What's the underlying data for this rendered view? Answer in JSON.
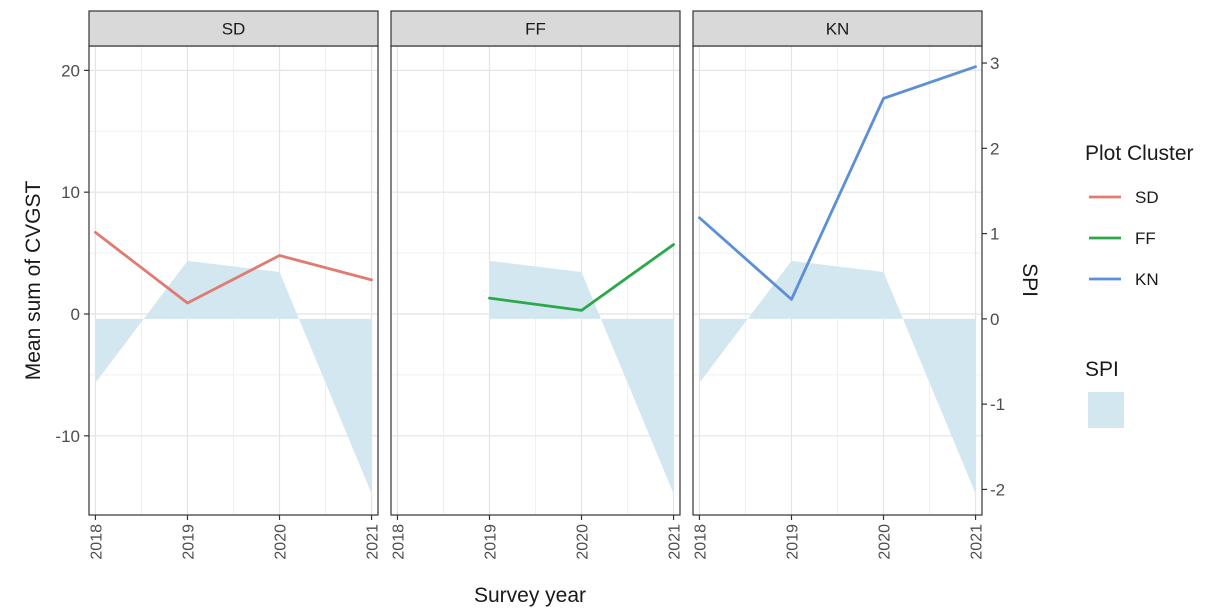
{
  "chart_data": {
    "type": "line",
    "facets": [
      "SD",
      "FF",
      "KN"
    ],
    "xlabel": "Survey year",
    "ylabel": "Mean sum of CVGST",
    "y2label": "SPI",
    "x_ticks": [
      2018,
      2019,
      2020,
      2021
    ],
    "y_ticks": [
      -10,
      0,
      10,
      20
    ],
    "y2_ticks": [
      -2,
      -1,
      0,
      1,
      2,
      3
    ],
    "xlim": [
      2017.93,
      2021.07
    ],
    "ylim": [
      -16.5,
      22.0
    ],
    "y2lim": [
      -2.3,
      3.2
    ],
    "grid": true,
    "legend_position": "right",
    "legend": {
      "line_title": "Plot Cluster",
      "fill_title": "SPI",
      "fill_color": "#d3e7f1"
    },
    "series": [
      {
        "name": "SD",
        "color": "#e07b72",
        "x": [
          2018,
          2019,
          2020,
          2021
        ],
        "values": [
          6.7,
          0.9,
          4.8,
          2.8
        ]
      },
      {
        "name": "FF",
        "color": "#2ba84a",
        "x": [
          2019,
          2020,
          2021
        ],
        "values": [
          1.3,
          0.3,
          5.7
        ]
      },
      {
        "name": "KN",
        "color": "#5b8fd6",
        "x": [
          2018,
          2019,
          2020,
          2021
        ],
        "values": [
          7.9,
          1.2,
          17.7,
          20.3
        ]
      }
    ],
    "spi_area": {
      "SD": {
        "x": [
          2018,
          2019,
          2020,
          2021
        ],
        "values": [
          -0.75,
          0.68,
          0.55,
          -2.05
        ]
      },
      "FF": {
        "x": [
          2019,
          2020,
          2021
        ],
        "values": [
          0.68,
          0.55,
          -2.05
        ]
      },
      "KN": {
        "x": [
          2018,
          2019,
          2020,
          2021
        ],
        "values": [
          -0.75,
          0.68,
          0.55,
          -2.05
        ]
      }
    }
  }
}
